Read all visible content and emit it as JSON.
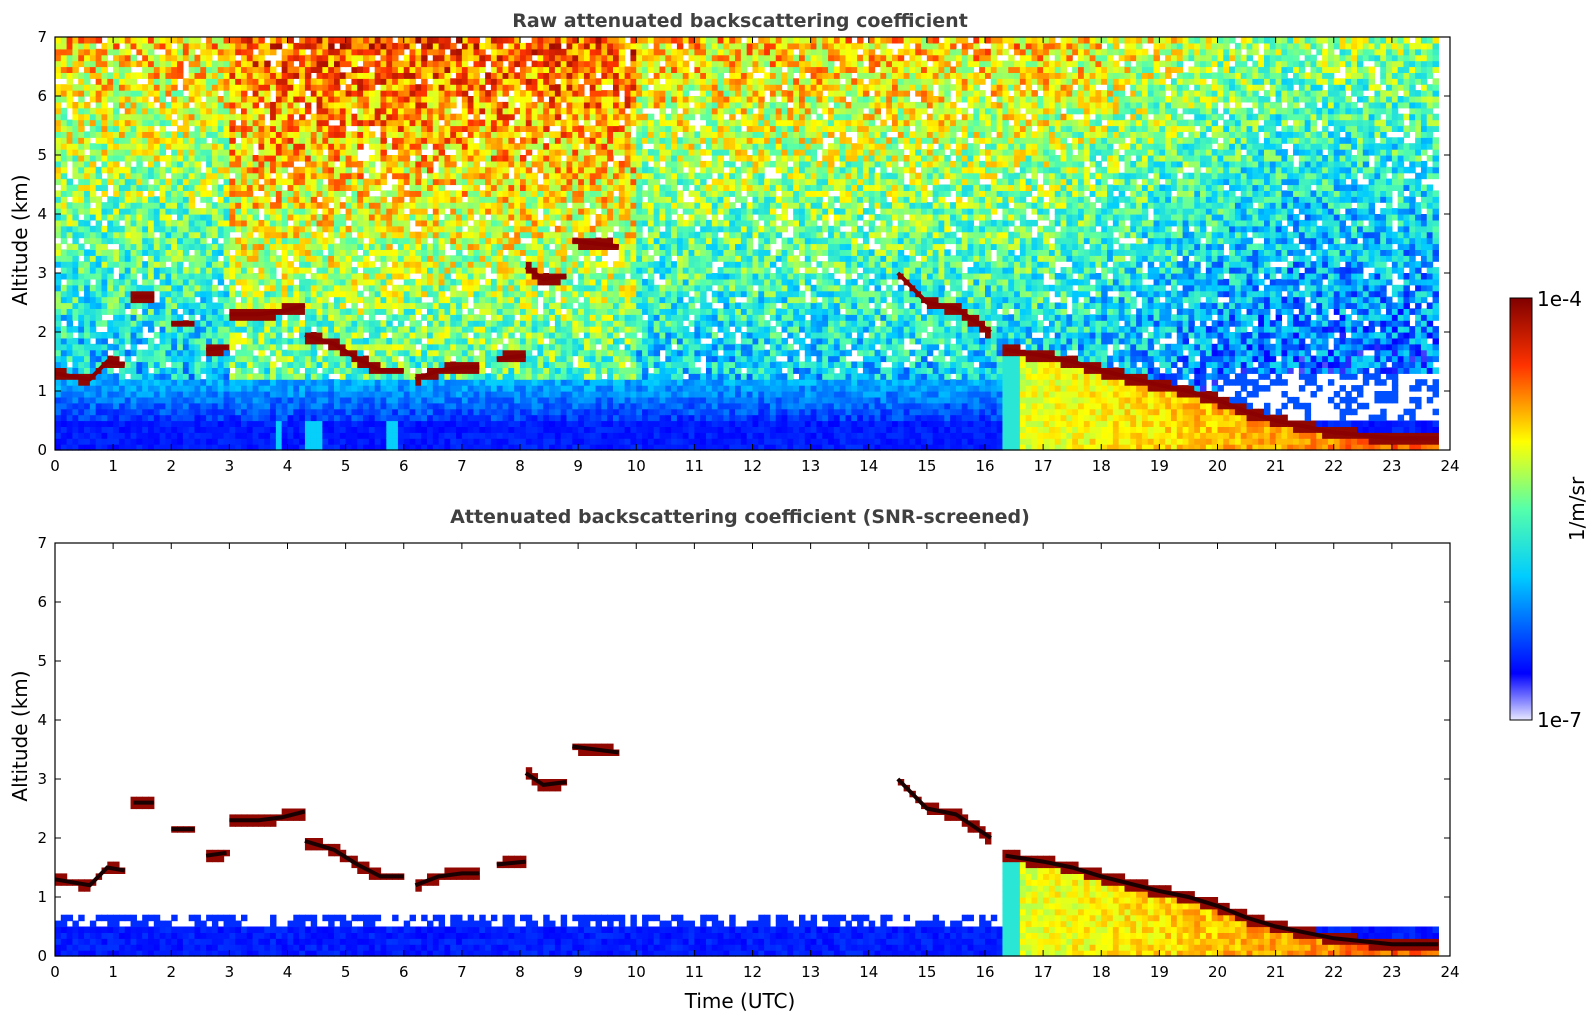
{
  "chart_data": [
    {
      "type": "heatmap",
      "title": "Raw attenuated backscattering coefficient",
      "xlabel": "",
      "ylabel": "Altitude (km)",
      "xlim": [
        0,
        24
      ],
      "ylim": [
        0,
        7
      ],
      "xticks": [
        "0",
        "1",
        "2",
        "3",
        "4",
        "5",
        "6",
        "7",
        "8",
        "9",
        "10",
        "11",
        "12",
        "13",
        "14",
        "15",
        "16",
        "17",
        "18",
        "19",
        "20",
        "21",
        "22",
        "23",
        "24"
      ],
      "yticks": [
        "0",
        "1",
        "2",
        "3",
        "4",
        "5",
        "6",
        "7"
      ],
      "colormap": "jet",
      "color_scale": "log",
      "screened": false,
      "data_end_time": 23.8,
      "cloud_layers": [
        {
          "t": [
            0.0,
            0.3,
            0.6,
            0.9,
            1.2
          ],
          "alt": [
            1.3,
            1.25,
            1.2,
            1.5,
            1.45
          ]
        },
        {
          "t": [
            1.35,
            1.7
          ],
          "alt": [
            2.6,
            2.6
          ]
        },
        {
          "t": [
            2.0,
            2.4
          ],
          "alt": [
            2.15,
            2.15
          ]
        },
        {
          "t": [
            2.6,
            2.95
          ],
          "alt": [
            1.7,
            1.75
          ]
        },
        {
          "t": [
            3.0,
            3.5,
            3.9,
            4.3
          ],
          "alt": [
            2.3,
            2.3,
            2.35,
            2.45
          ]
        },
        {
          "t": [
            4.3,
            4.8,
            5.2,
            5.6,
            6.0
          ],
          "alt": [
            1.95,
            1.8,
            1.55,
            1.35,
            1.35
          ]
        },
        {
          "t": [
            6.2,
            6.6,
            7.0,
            7.3
          ],
          "alt": [
            1.2,
            1.35,
            1.4,
            1.4
          ]
        },
        {
          "t": [
            7.6,
            8.1
          ],
          "alt": [
            1.55,
            1.6
          ]
        },
        {
          "t": [
            8.1,
            8.4,
            8.8
          ],
          "alt": [
            3.1,
            2.9,
            2.95
          ]
        },
        {
          "t": [
            8.9,
            9.3,
            9.7
          ],
          "alt": [
            3.55,
            3.5,
            3.45
          ]
        },
        {
          "t": [
            14.5,
            15.0,
            15.5,
            16.1
          ],
          "alt": [
            3.0,
            2.5,
            2.4,
            2.0
          ]
        },
        {
          "t": [
            16.35,
            17.0,
            17.5,
            18.0,
            19.0,
            19.5,
            20.0,
            20.5,
            21.0,
            21.5,
            22.0,
            22.5,
            23.0,
            23.8
          ],
          "alt": [
            1.7,
            1.6,
            1.5,
            1.35,
            1.1,
            1.0,
            0.85,
            0.65,
            0.5,
            0.4,
            0.3,
            0.25,
            0.2,
            0.2
          ]
        }
      ]
    },
    {
      "type": "heatmap",
      "title": "Attenuated backscattering coefficient (SNR-screened)",
      "xlabel": "Time (UTC)",
      "ylabel": "Altitude (km)",
      "xlim": [
        0,
        24
      ],
      "ylim": [
        0,
        7
      ],
      "xticks": [
        "0",
        "1",
        "2",
        "3",
        "4",
        "5",
        "6",
        "7",
        "8",
        "9",
        "10",
        "11",
        "12",
        "13",
        "14",
        "15",
        "16",
        "17",
        "18",
        "19",
        "20",
        "21",
        "22",
        "23",
        "24"
      ],
      "yticks": [
        "0",
        "1",
        "2",
        "3",
        "4",
        "5",
        "6",
        "7"
      ],
      "colormap": "jet",
      "color_scale": "log",
      "screened": true,
      "data_end_time": 23.8,
      "cloud_layers": [
        {
          "t": [
            0.0,
            0.3,
            0.6,
            0.9,
            1.2
          ],
          "alt": [
            1.3,
            1.25,
            1.2,
            1.5,
            1.45
          ]
        },
        {
          "t": [
            1.35,
            1.7
          ],
          "alt": [
            2.6,
            2.6
          ]
        },
        {
          "t": [
            2.0,
            2.4
          ],
          "alt": [
            2.15,
            2.15
          ]
        },
        {
          "t": [
            2.6,
            2.95
          ],
          "alt": [
            1.7,
            1.75
          ]
        },
        {
          "t": [
            3.0,
            3.5,
            3.9,
            4.3
          ],
          "alt": [
            2.3,
            2.3,
            2.35,
            2.45
          ]
        },
        {
          "t": [
            4.3,
            4.8,
            5.2,
            5.6,
            6.0
          ],
          "alt": [
            1.95,
            1.8,
            1.55,
            1.35,
            1.35
          ]
        },
        {
          "t": [
            6.2,
            6.6,
            7.0,
            7.3
          ],
          "alt": [
            1.2,
            1.35,
            1.4,
            1.4
          ]
        },
        {
          "t": [
            7.6,
            8.1
          ],
          "alt": [
            1.55,
            1.6
          ]
        },
        {
          "t": [
            8.1,
            8.4,
            8.8
          ],
          "alt": [
            3.1,
            2.9,
            2.95
          ]
        },
        {
          "t": [
            8.9,
            9.3,
            9.7
          ],
          "alt": [
            3.55,
            3.5,
            3.45
          ]
        },
        {
          "t": [
            14.5,
            15.0,
            15.5,
            16.1
          ],
          "alt": [
            3.0,
            2.5,
            2.4,
            2.0
          ]
        },
        {
          "t": [
            16.35,
            17.0,
            17.5,
            18.0,
            19.0,
            19.5,
            20.0,
            20.5,
            21.0,
            21.5,
            22.0,
            22.5,
            23.0,
            23.8
          ],
          "alt": [
            1.7,
            1.6,
            1.5,
            1.35,
            1.1,
            1.0,
            0.85,
            0.65,
            0.5,
            0.4,
            0.3,
            0.25,
            0.2,
            0.2
          ]
        }
      ]
    }
  ],
  "colorbar": {
    "label": "1/m/sr",
    "max_label": "1e-4",
    "min_label": "1e-7",
    "range": [
      1e-07,
      0.0001
    ],
    "scale": "log"
  }
}
